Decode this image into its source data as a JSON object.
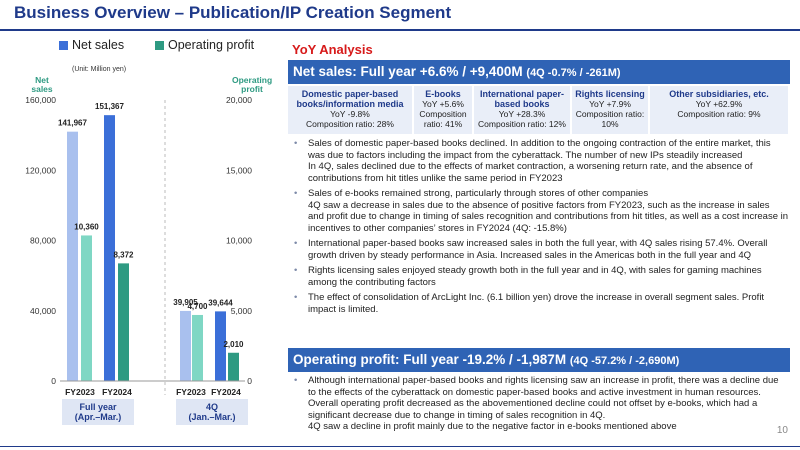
{
  "title": "Business Overview – Publication/IP Creation Segment",
  "legend": {
    "net_sales": "Net sales",
    "operating_profit": "Operating profit",
    "unit": "(Unit: Million yen)"
  },
  "axes": {
    "left_title": "Net sales",
    "right_title": "Operating profit"
  },
  "colors": {
    "net_sales_fy2023": "#a9c0ee",
    "net_sales_fy2024": "#3b6fd8",
    "op_fy2023": "#7fd7c4",
    "op_fy2024": "#2e9a82",
    "title": "#1f3a8a",
    "band": "#2f63b5",
    "yoy": "#d71a1a"
  },
  "chart_data": {
    "type": "bar",
    "groups": [
      {
        "label": "Full year (Apr.–Mar.)",
        "label_lines": [
          "Full year",
          "(Apr.–Mar.)"
        ],
        "categories": [
          "FY2023",
          "FY2024"
        ]
      },
      {
        "label": "4Q (Jan.–Mar.)",
        "label_lines": [
          "4Q",
          "(Jan.–Mar.)"
        ],
        "categories": [
          "FY2023",
          "FY2024"
        ]
      }
    ],
    "series": [
      {
        "name": "Net sales",
        "axis": "left",
        "values": [
          141967,
          151367,
          39905,
          39644
        ],
        "labels": [
          "141,967",
          "151,367",
          "39,905",
          "39,644"
        ]
      },
      {
        "name": "Operating profit",
        "axis": "right",
        "values": [
          10360,
          8372,
          4700,
          2010
        ],
        "labels": [
          "10,360",
          "8,372",
          "4,700",
          "2,010"
        ]
      }
    ],
    "left_ticks": [
      "0",
      "40,000",
      "80,000",
      "120,000",
      "160,000"
    ],
    "right_ticks": [
      "0",
      "5,000",
      "10,000",
      "15,000",
      "20,000"
    ],
    "ylim_left": [
      0,
      160000
    ],
    "ylim_right": [
      0,
      20000
    ]
  },
  "yoy_heading": "YoY Analysis",
  "net_sales_band": {
    "main": "Net sales: Full year +6.6% / +9,400M",
    "sub": "(4Q -0.7% / -261M)"
  },
  "categories": [
    {
      "title": "Domestic paper-based books/information media",
      "lines": [
        "YoY -9.8%",
        "Composition ratio: 28%"
      ]
    },
    {
      "title": "E-books",
      "lines": [
        "YoY +5.6%",
        "Composition ratio: 41%"
      ]
    },
    {
      "title": "International paper-based books",
      "lines": [
        "YoY +28.3%",
        "Composition ratio: 12%"
      ]
    },
    {
      "title": "Rights licensing",
      "lines": [
        "YoY +7.9%",
        "Composition ratio: 10%"
      ]
    },
    {
      "title": "Other subsidiaries, etc.",
      "lines": [
        "YoY +62.9%",
        "Composition ratio: 9%"
      ]
    }
  ],
  "net_sales_notes": [
    {
      "main": "Sales of domestic paper-based books declined. In addition to the ongoing contraction of the entire market, this was due to factors including the impact from the cyberattack. The number of new IPs steadily increased",
      "sub": "In 4Q, sales declined due to the effects of market contraction, a worsening return rate, and the absence of contributions from hit titles unlike the same period in FY2023"
    },
    {
      "main": "Sales of e-books remained strong, particularly through stores of other companies",
      "sub": "4Q saw a decrease in sales due to the absence of positive factors from FY2023, such as the increase in sales and profit due to change in timing of sales recognition and contributions from hit titles, as well as a cost increase in incentives to other companies’ stores in FY2024 (4Q: -15.8%)"
    },
    {
      "main": "International paper-based books saw increased sales in both the full year, with 4Q sales rising 57.4%. Overall growth driven by steady performance in Asia. Increased sales in the Americas both in the full year and 4Q",
      "sub": ""
    },
    {
      "main": "Rights licensing sales enjoyed steady growth both in the full year and in 4Q, with sales for gaming machines among the contributing factors",
      "sub": ""
    },
    {
      "main": "The effect of consolidation of ArcLight Inc. (6.1 billion yen) drove the increase in overall segment sales. Profit impact is limited.",
      "sub": ""
    }
  ],
  "op_band": {
    "main": "Operating profit: Full year -19.2% / -1,987M",
    "sub": "(4Q -57.2% / -2,690M)"
  },
  "op_notes": [
    {
      "main": "Although international paper-based books and rights licensing saw an increase in profit, there was a decline due to the effects of the cyberattack on domestic paper-based books and active investment in human resources. Overall operating profit decreased as the abovementioned decline could not offset by e-books, which had a significant decrease due to change in timing of sales recognition in 4Q.",
      "sub": "4Q saw a decline in profit mainly due to the negative factor in e-books mentioned above"
    }
  ],
  "page_number": "10"
}
